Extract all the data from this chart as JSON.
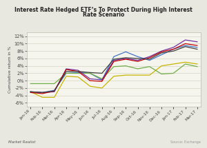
{
  "title_line1": "Interest Rate Hedged ETF’s To Protect During High Interest",
  "title_line2": "Rate Scenario",
  "ylabel": "Cumulative return in %",
  "background_color": "#e8e8e0",
  "plot_bg_color": "#f5f5ee",
  "watermark": "Market Realist",
  "source": "Source: Exchange",
  "x_labels": [
    "Jan-16",
    "Feb-16",
    "Mar-16",
    "Apr-16",
    "May-16",
    "Jun-16",
    "Jul-16",
    "Aug-16",
    "Sep-16",
    "Oct-16",
    "Nov-16",
    "Dec-16",
    "Jan-17",
    "Feb-17",
    "Mar-17"
  ],
  "ylim": [
    -7,
    13
  ],
  "yticks": [
    -6,
    -4,
    -2,
    0,
    2,
    4,
    6,
    8,
    10,
    12
  ],
  "series": {
    "HYZD": {
      "color": "#4472c4",
      "values": [
        -3.0,
        -3.2,
        -2.6,
        2.0,
        2.2,
        2.0,
        0.2,
        6.5,
        7.8,
        6.5,
        5.5,
        7.0,
        8.5,
        9.5,
        9.0
      ]
    },
    "IGHG": {
      "color": "#c8b400",
      "values": [
        -3.0,
        -4.5,
        -4.5,
        1.2,
        1.0,
        -1.5,
        -2.0,
        1.2,
        1.5,
        1.5,
        1.5,
        4.0,
        4.5,
        5.0,
        4.5
      ]
    },
    "HYLS": {
      "color": "#70ad47",
      "values": [
        -0.8,
        -0.8,
        -0.8,
        2.0,
        2.0,
        2.0,
        0.5,
        3.8,
        4.0,
        3.2,
        3.8,
        1.8,
        2.0,
        4.5,
        3.8
      ]
    },
    "THHY": {
      "color": "#7030a0",
      "values": [
        -3.0,
        -3.2,
        -3.0,
        3.2,
        2.8,
        0.5,
        0.2,
        5.5,
        6.0,
        5.5,
        6.5,
        8.0,
        9.0,
        11.0,
        10.5
      ]
    },
    "HYHG": {
      "color": "#c00000",
      "values": [
        -3.2,
        -3.5,
        -2.8,
        3.0,
        2.5,
        0.0,
        -0.2,
        5.2,
        5.8,
        5.2,
        6.2,
        7.8,
        8.5,
        10.0,
        9.5
      ]
    },
    "HYGH": {
      "color": "#404040",
      "values": [
        -3.0,
        -3.2,
        -2.8,
        2.5,
        2.5,
        2.2,
        2.0,
        5.8,
        6.2,
        6.0,
        5.8,
        7.5,
        8.0,
        9.2,
        8.5
      ]
    }
  }
}
